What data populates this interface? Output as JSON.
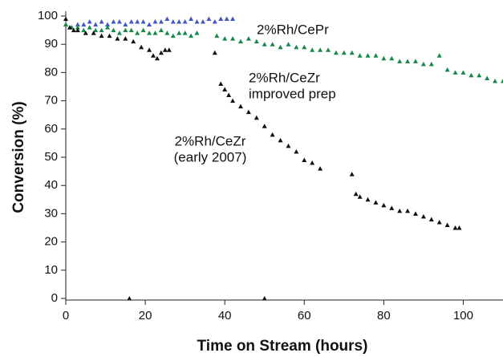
{
  "chart_data": {
    "type": "scatter",
    "xlabel": "Time on Stream (hours)",
    "ylabel": "Conversion (%)",
    "xlim": [
      0,
      110
    ],
    "ylim": [
      0,
      100
    ],
    "xticks": [
      0,
      20,
      40,
      60,
      80,
      100
    ],
    "yticks": [
      0,
      10,
      20,
      30,
      40,
      50,
      60,
      70,
      80,
      90,
      100
    ],
    "annotations": [
      [
        "2%Rh/CePr"
      ],
      [
        "2%Rh/CeZr",
        "improved prep"
      ],
      [
        "2%Rh/CeZr",
        "(early 2007)"
      ]
    ],
    "series": [
      {
        "color": "#4456c4",
        "x": [
          0,
          1.5,
          3,
          4.5,
          6,
          7.5,
          9,
          10.5,
          12,
          13.5,
          15,
          16.5,
          18,
          19.5,
          21,
          22.5,
          24,
          25.5,
          27,
          28.5,
          30,
          31.5,
          33,
          34.5,
          36,
          37.5,
          39,
          40.5,
          42
        ],
        "values": [
          97,
          96,
          97,
          97,
          98,
          97,
          98,
          97,
          98,
          98,
          97,
          98,
          98,
          98,
          97,
          98,
          98,
          99,
          98,
          98,
          98,
          99,
          98,
          98,
          99,
          98,
          99,
          99,
          99
        ]
      },
      {
        "color": "#16894a",
        "x": [
          0,
          1.5,
          3,
          4.5,
          6,
          7.5,
          9,
          10.5,
          12,
          13.5,
          15,
          16.5,
          18,
          19.5,
          21,
          22.5,
          24,
          25.5,
          27,
          28.5,
          30,
          31.5,
          33,
          38,
          40,
          42,
          44,
          46,
          48,
          50,
          52,
          54,
          56,
          58,
          60,
          62,
          64,
          66,
          68,
          70,
          72,
          74,
          76,
          78,
          80,
          82,
          84,
          86,
          88,
          90,
          92,
          94,
          96,
          98,
          100,
          102,
          104,
          106,
          108,
          110
        ],
        "values": [
          97,
          96,
          96,
          95,
          96,
          95,
          95,
          96,
          95,
          94,
          95,
          95,
          94,
          95,
          94,
          94,
          95,
          94,
          93,
          94,
          94,
          93,
          94,
          93,
          92,
          92,
          91,
          92,
          91,
          90,
          90,
          89,
          90,
          89,
          89,
          88,
          88,
          88,
          87,
          87,
          87,
          86,
          86,
          86,
          85,
          85,
          84,
          84,
          84,
          83,
          83,
          86,
          81,
          80,
          80,
          79,
          79,
          78,
          77,
          77
        ]
      },
      {
        "color": "#111111",
        "x": [
          0,
          1,
          2,
          3,
          5,
          7,
          9,
          11,
          13,
          15,
          17,
          19,
          21,
          22,
          23,
          24,
          25,
          26,
          37.5,
          39,
          40,
          41,
          42,
          44,
          46,
          48,
          50,
          52,
          54,
          56,
          58,
          60,
          62,
          64,
          72,
          73,
          74,
          76,
          78,
          80,
          82,
          84,
          86,
          88,
          90,
          92,
          94,
          96,
          98,
          99,
          16,
          50
        ],
        "values": [
          99,
          96,
          95,
          95,
          94,
          94,
          93,
          93,
          92,
          92,
          91,
          89,
          88,
          86,
          85,
          87,
          88,
          88,
          87,
          76,
          74,
          72,
          70,
          68,
          66,
          64,
          61,
          58,
          56,
          54,
          52,
          49,
          48,
          46,
          44,
          37,
          36,
          35,
          34,
          33,
          32,
          31,
          31,
          30,
          29,
          28,
          27,
          26,
          25,
          25,
          0,
          0
        ]
      }
    ]
  }
}
